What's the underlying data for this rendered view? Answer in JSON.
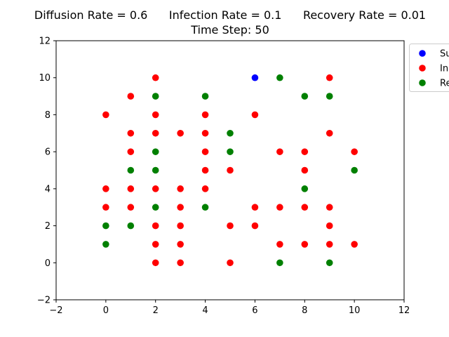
{
  "chart_data": {
    "type": "scatter",
    "title": "Diffusion Rate = 0.6      Infection Rate = 0.1      Recovery Rate = 0.01",
    "subtitle": "Time Step: 50",
    "xlabel": "",
    "ylabel": "",
    "xlim": [
      -2,
      12
    ],
    "ylim": [
      -2,
      12
    ],
    "xticks": [
      -2,
      0,
      2,
      4,
      6,
      8,
      10,
      12
    ],
    "yticks": [
      -2,
      0,
      2,
      4,
      6,
      8,
      10,
      12
    ],
    "grid": false,
    "legend_position": "outside upper-right",
    "series": [
      {
        "name": "Su",
        "color": "#0000ff",
        "points": [
          [
            6,
            10
          ]
        ]
      },
      {
        "name": "In",
        "color": "#ff0000",
        "points": [
          [
            0,
            8
          ],
          [
            0,
            4
          ],
          [
            0,
            3
          ],
          [
            1,
            9
          ],
          [
            1,
            7
          ],
          [
            1,
            6
          ],
          [
            1,
            4
          ],
          [
            1,
            3
          ],
          [
            2,
            10
          ],
          [
            2,
            8
          ],
          [
            2,
            7
          ],
          [
            2,
            4
          ],
          [
            2,
            2
          ],
          [
            2,
            1
          ],
          [
            2,
            0
          ],
          [
            3,
            7
          ],
          [
            3,
            4
          ],
          [
            3,
            3
          ],
          [
            3,
            2
          ],
          [
            3,
            1
          ],
          [
            3,
            0
          ],
          [
            4,
            8
          ],
          [
            4,
            7
          ],
          [
            4,
            6
          ],
          [
            4,
            5
          ],
          [
            4,
            4
          ],
          [
            5,
            5
          ],
          [
            5,
            2
          ],
          [
            5,
            0
          ],
          [
            6,
            8
          ],
          [
            6,
            3
          ],
          [
            6,
            2
          ],
          [
            7,
            6
          ],
          [
            7,
            3
          ],
          [
            7,
            1
          ],
          [
            8,
            6
          ],
          [
            8,
            5
          ],
          [
            8,
            3
          ],
          [
            8,
            1
          ],
          [
            9,
            10
          ],
          [
            9,
            7
          ],
          [
            9,
            3
          ],
          [
            9,
            2
          ],
          [
            9,
            1
          ],
          [
            10,
            6
          ],
          [
            10,
            1
          ]
        ]
      },
      {
        "name": "Re",
        "color": "#008000",
        "points": [
          [
            0,
            2
          ],
          [
            0,
            1
          ],
          [
            1,
            5
          ],
          [
            1,
            2
          ],
          [
            2,
            9
          ],
          [
            2,
            6
          ],
          [
            2,
            5
          ],
          [
            2,
            3
          ],
          [
            4,
            9
          ],
          [
            4,
            3
          ],
          [
            5,
            7
          ],
          [
            5,
            6
          ],
          [
            7,
            10
          ],
          [
            7,
            0
          ],
          [
            8,
            9
          ],
          [
            8,
            4
          ],
          [
            9,
            9
          ],
          [
            9,
            0
          ],
          [
            10,
            5
          ]
        ]
      }
    ]
  }
}
